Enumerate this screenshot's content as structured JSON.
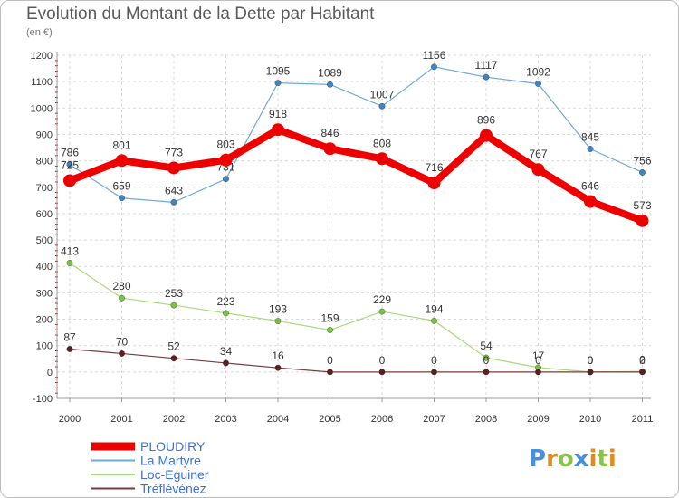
{
  "title": "Evolution du Montant de la Dette par Habitant",
  "unit": "(en €)",
  "logo": {
    "letters": [
      "P",
      "r",
      "o",
      "x",
      "i",
      "t",
      "i"
    ],
    "colors": [
      "#4a90d9",
      "#e58a1f",
      "#8bc34a",
      "#4a90d9",
      "#e58a1f",
      "#8bc34a",
      "#e58a1f"
    ]
  },
  "chart_data": {
    "type": "line",
    "x": [
      "2000",
      "2001",
      "2002",
      "2003",
      "2004",
      "2005",
      "2006",
      "2007",
      "2008",
      "2009",
      "2010",
      "2011"
    ],
    "ylim": [
      -100,
      1200
    ],
    "yticks": [
      "-100",
      "0",
      "100",
      "200",
      "300",
      "400",
      "500",
      "600",
      "700",
      "800",
      "900",
      "1000",
      "1100",
      "1200"
    ],
    "grid": true,
    "legend": "bottom-left",
    "series": [
      {
        "name": "La Martyre",
        "color": "#6fa8dc",
        "marker": "#3d85c6",
        "width": 1.2,
        "values": [
          786,
          659,
          643,
          731,
          1095,
          1089,
          1007,
          1156,
          1117,
          1092,
          845,
          756
        ],
        "labels": [
          "786",
          "659",
          "643",
          "731",
          "1095",
          "1089",
          "1007",
          "1156",
          "1117",
          "1092",
          "845",
          "756"
        ]
      },
      {
        "name": "Loc-Eguiner",
        "color": "#a5dc7a",
        "marker": "#7cc242",
        "width": 1.2,
        "values": [
          413,
          280,
          253,
          223,
          193,
          159,
          229,
          194,
          54,
          17,
          0,
          2
        ],
        "labels": [
          "413",
          "280",
          "253",
          "223",
          "193",
          "159",
          "229",
          "194",
          "54",
          "17",
          "0",
          "2"
        ]
      },
      {
        "name": "Tréflévénez",
        "color": "#7a3b3b",
        "marker": "#5a1f1f",
        "width": 1.2,
        "values": [
          87,
          70,
          52,
          34,
          16,
          0,
          0,
          0,
          0,
          0,
          0,
          0
        ],
        "labels": [
          "87",
          "70",
          "52",
          "34",
          "16",
          "0",
          "0",
          "0",
          "0",
          "0",
          "0",
          "0"
        ]
      },
      {
        "name": "PLOUDIRY",
        "color": "#ee0000",
        "marker": "#ee0000",
        "width": 8,
        "values": [
          725,
          801,
          773,
          803,
          918,
          846,
          808,
          716,
          896,
          767,
          646,
          573
        ],
        "labels": [
          "725",
          "801",
          "773",
          "803",
          "918",
          "846",
          "808",
          "716",
          "896",
          "767",
          "646",
          "573"
        ]
      }
    ],
    "legend_order": [
      "PLOUDIRY",
      "La Martyre",
      "Loc-Eguiner",
      "Tréflévénez"
    ]
  }
}
